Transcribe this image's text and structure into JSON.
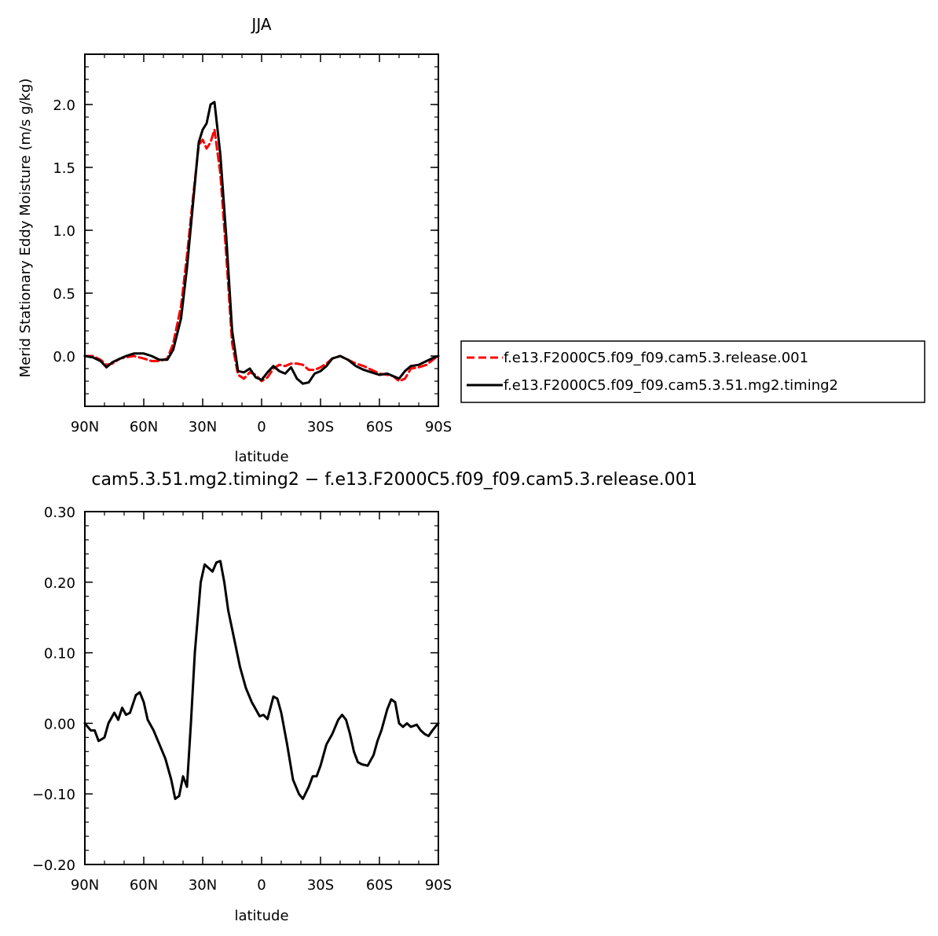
{
  "colors": {
    "control": "#ff0000",
    "test": "#000000",
    "axes": "#000000"
  },
  "chart_data": [
    {
      "type": "line",
      "title": "JJA",
      "xlabel": "latitude",
      "ylabel": "Merid Stationary Eddy Moisture (m/s g/kg)",
      "xlim": [
        90,
        -90
      ],
      "ylim": [
        -0.4,
        2.4
      ],
      "xticks": [
        90,
        60,
        30,
        0,
        -30,
        -60,
        -90
      ],
      "xtick_labels": [
        "90N",
        "60N",
        "30N",
        "0",
        "30S",
        "60S",
        "90S"
      ],
      "yticks": [
        0.0,
        0.5,
        1.0,
        1.5,
        2.0
      ],
      "ytick_labels": [
        "0.0",
        "0.5",
        "1.0",
        "1.5",
        "2.0"
      ],
      "grid": false,
      "legend_position": "right",
      "series": [
        {
          "name": "f.e13.F2000C5.f09_f09.cam5.3.release.001",
          "style": "dashed",
          "color": "#ff0000",
          "x": [
            90,
            86,
            82,
            79,
            76,
            72,
            69,
            65,
            60,
            56,
            52,
            48,
            45,
            41,
            38,
            35,
            32,
            30,
            28,
            26,
            24,
            21,
            18,
            15,
            12,
            9,
            6,
            3,
            0,
            -3,
            -6,
            -9,
            -12,
            -15,
            -18,
            -21,
            -24,
            -27,
            -30,
            -33,
            -36,
            -40,
            -44,
            -48,
            -52,
            -56,
            -60,
            -64,
            -67,
            -70,
            -73,
            -76,
            -80,
            -84,
            -88,
            -90
          ],
          "y": [
            0.0,
            0.0,
            -0.03,
            -0.07,
            -0.06,
            -0.02,
            -0.01,
            0.0,
            -0.02,
            -0.04,
            -0.04,
            -0.02,
            0.1,
            0.4,
            0.8,
            1.25,
            1.68,
            1.72,
            1.65,
            1.7,
            1.8,
            1.45,
            0.8,
            0.1,
            -0.15,
            -0.18,
            -0.13,
            -0.15,
            -0.2,
            -0.17,
            -0.1,
            -0.07,
            -0.08,
            -0.06,
            -0.06,
            -0.07,
            -0.11,
            -0.11,
            -0.09,
            -0.06,
            -0.02,
            0.0,
            -0.03,
            -0.06,
            -0.08,
            -0.11,
            -0.14,
            -0.15,
            -0.16,
            -0.2,
            -0.18,
            -0.1,
            -0.09,
            -0.07,
            -0.02,
            0.0
          ]
        },
        {
          "name": "f.e13.F2000C5.f09_f09.cam5.3.51.mg2.timing2",
          "style": "solid",
          "color": "#000000",
          "x": [
            90,
            86,
            82,
            79,
            76,
            72,
            69,
            65,
            60,
            56,
            52,
            48,
            45,
            41,
            38,
            35,
            32,
            30,
            28,
            26,
            24,
            21,
            18,
            15,
            12,
            9,
            6,
            3,
            0,
            -3,
            -6,
            -9,
            -12,
            -15,
            -18,
            -21,
            -24,
            -27,
            -30,
            -33,
            -36,
            -40,
            -44,
            -48,
            -52,
            -56,
            -60,
            -64,
            -67,
            -70,
            -73,
            -76,
            -80,
            -84,
            -88,
            -90
          ],
          "y": [
            0.0,
            -0.01,
            -0.04,
            -0.09,
            -0.05,
            -0.02,
            0.0,
            0.02,
            0.02,
            0.0,
            -0.03,
            -0.03,
            0.05,
            0.3,
            0.7,
            1.2,
            1.7,
            1.8,
            1.85,
            2.0,
            2.02,
            1.6,
            0.95,
            0.2,
            -0.12,
            -0.13,
            -0.1,
            -0.17,
            -0.19,
            -0.13,
            -0.08,
            -0.12,
            -0.14,
            -0.09,
            -0.18,
            -0.22,
            -0.21,
            -0.14,
            -0.12,
            -0.08,
            -0.02,
            0.0,
            -0.03,
            -0.08,
            -0.11,
            -0.13,
            -0.15,
            -0.14,
            -0.16,
            -0.18,
            -0.12,
            -0.08,
            -0.07,
            -0.04,
            -0.01,
            0.0
          ]
        }
      ]
    },
    {
      "type": "line",
      "title": "cam5.3.51.mg2.timing2 − f.e13.F2000C5.f09_f09.cam5.3.release.001",
      "xlabel": "latitude",
      "ylabel": "",
      "xlim": [
        90,
        -90
      ],
      "ylim": [
        -0.2,
        0.3
      ],
      "xticks": [
        90,
        60,
        30,
        0,
        -30,
        -60,
        -90
      ],
      "xtick_labels": [
        "90N",
        "60N",
        "30N",
        "0",
        "30S",
        "60S",
        "90S"
      ],
      "yticks": [
        -0.2,
        -0.1,
        0.0,
        0.1,
        0.2,
        0.3
      ],
      "ytick_labels": [
        "−0.20",
        "−0.10",
        "0.00",
        "0.10",
        "0.20",
        "0.30"
      ],
      "grid": false,
      "series": [
        {
          "color": "#000000",
          "style": "solid",
          "x": [
            90,
            87,
            85,
            83,
            80,
            78,
            75,
            73,
            71,
            69,
            67,
            64,
            62,
            60,
            58,
            55,
            52,
            49,
            46,
            44,
            42,
            40,
            38,
            36,
            34,
            31,
            29,
            27,
            25,
            23,
            21,
            19,
            17,
            14,
            11,
            8,
            5,
            3,
            1,
            -1,
            -3,
            -6,
            -8,
            -10,
            -13,
            -16,
            -19,
            -21,
            -24,
            -26,
            -28,
            -30,
            -33,
            -36,
            -39,
            -41,
            -43,
            -45,
            -47,
            -49,
            -51,
            -54,
            -57,
            -59,
            -61,
            -64,
            -66,
            -68,
            -70,
            -72,
            -74,
            -76,
            -79,
            -81,
            -83,
            -85,
            -87,
            -89,
            -90
          ],
          "y": [
            0.0,
            -0.01,
            -0.01,
            -0.025,
            -0.02,
            0.0,
            0.015,
            0.005,
            0.022,
            0.012,
            0.015,
            0.04,
            0.044,
            0.03,
            0.005,
            -0.01,
            -0.03,
            -0.05,
            -0.08,
            -0.107,
            -0.103,
            -0.075,
            -0.09,
            0.0,
            0.1,
            0.2,
            0.225,
            0.22,
            0.215,
            0.228,
            0.23,
            0.2,
            0.16,
            0.12,
            0.08,
            0.05,
            0.03,
            0.02,
            0.01,
            0.012,
            0.006,
            0.038,
            0.035,
            0.015,
            -0.03,
            -0.08,
            -0.1,
            -0.107,
            -0.09,
            -0.075,
            -0.075,
            -0.06,
            -0.03,
            -0.015,
            0.005,
            0.012,
            0.005,
            -0.015,
            -0.04,
            -0.055,
            -0.058,
            -0.06,
            -0.045,
            -0.025,
            -0.01,
            0.02,
            0.034,
            0.03,
            0.0,
            -0.005,
            0.0,
            -0.005,
            -0.002,
            -0.01,
            -0.015,
            -0.018,
            -0.01,
            -0.003,
            0.0
          ]
        }
      ]
    }
  ]
}
